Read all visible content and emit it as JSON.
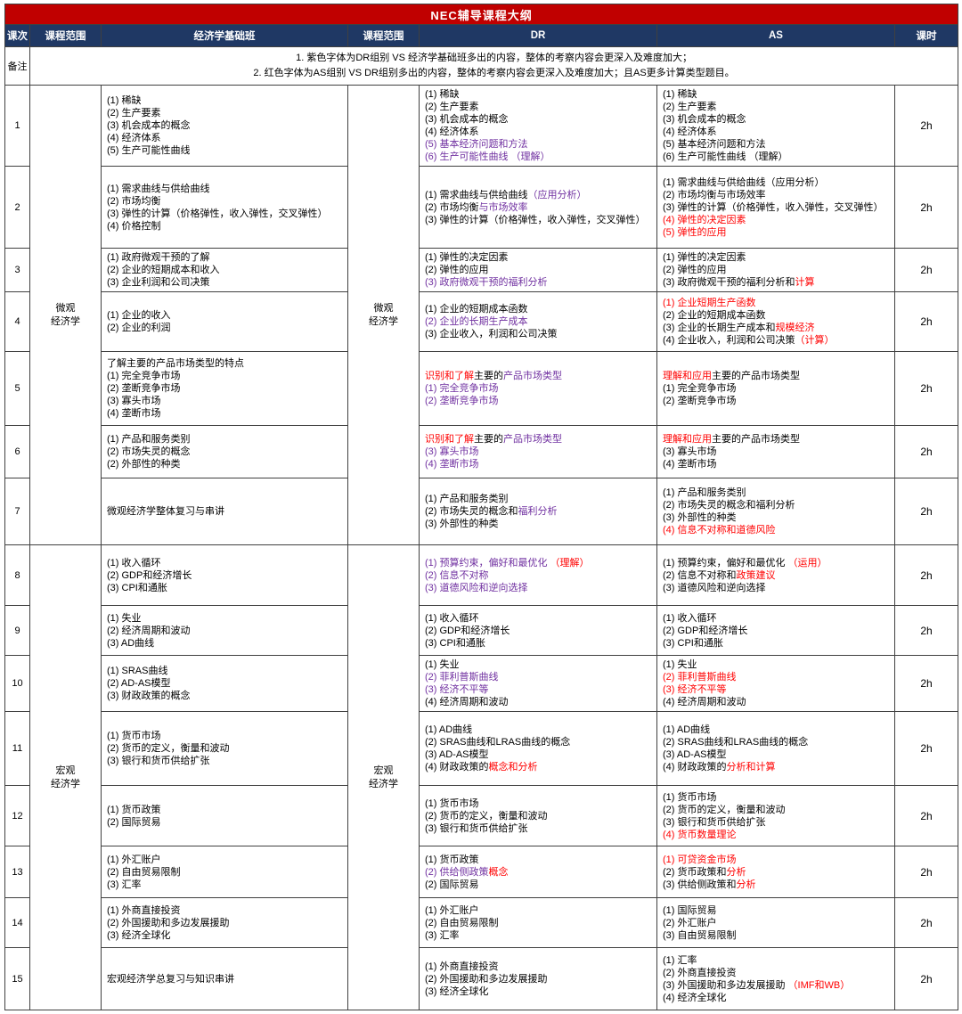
{
  "title": "NEC辅导课程大纲",
  "header": {
    "lesson": "课次",
    "scope1": "课程范围",
    "foundation": "经济学基础班",
    "scope2": "课程范围",
    "dr": "DR",
    "as": "AS",
    "hours": "课时"
  },
  "notes": {
    "label": "备注",
    "line1": "1. 紫色字体为DR组别 VS 经济学基础班多出的内容，整体的考察内容会更深入及难度加大；",
    "line2": "2. 红色字体为AS组别 VS DR组别多出的内容，整体的考察内容会更深入及难度加大；且AS更多计算类型题目。"
  },
  "scopes": {
    "micro": [
      "微观",
      "经济学"
    ],
    "macro": [
      "宏观",
      "经济学"
    ]
  },
  "colors": {
    "banner_bg": "#C00000",
    "banner_text": "#FFFFFF",
    "header_bg": "#1F3864",
    "header_text": "#FFFFFF",
    "purple": "#7030A0",
    "red": "#FF0000",
    "border": "#404040"
  },
  "rows": [
    {
      "lesson": "1",
      "hours": "2h",
      "foundation": [
        [
          [
            "(1) 稀缺",
            "k"
          ]
        ],
        [
          [
            "(2) 生产要素",
            "k"
          ]
        ],
        [
          [
            "(3) 机会成本的概念",
            "k"
          ]
        ],
        [
          [
            "(4) 经济体系",
            "k"
          ]
        ],
        [
          [
            "(5) 生产可能性曲线",
            "k"
          ]
        ]
      ],
      "dr": [
        [
          [
            "(1) 稀缺",
            "k"
          ]
        ],
        [
          [
            "(2) 生产要素",
            "k"
          ]
        ],
        [
          [
            "(3) 机会成本的概念",
            "k"
          ]
        ],
        [
          [
            "(4) 经济体系",
            "k"
          ]
        ],
        [
          [
            "(5) 基本经济问题和方法",
            "p"
          ]
        ],
        [
          [
            "(6) 生产可能性曲线 （理解）",
            "p"
          ]
        ]
      ],
      "as": [
        [
          [
            "(1) 稀缺",
            "k"
          ]
        ],
        [
          [
            "(2) 生产要素",
            "k"
          ]
        ],
        [
          [
            "(3) 机会成本的概念",
            "k"
          ]
        ],
        [
          [
            "(4) 经济体系",
            "k"
          ]
        ],
        [
          [
            "(5) 基本经济问题和方法",
            "k"
          ]
        ],
        [
          [
            "(6) 生产可能性曲线 （理解）",
            "k"
          ]
        ]
      ]
    },
    {
      "lesson": "2",
      "hours": "2h",
      "foundation": [
        [
          [
            "(1) 需求曲线与供给曲线",
            "k"
          ]
        ],
        [
          [
            "(2) 市场均衡",
            "k"
          ]
        ],
        [
          [
            "(3) 弹性的计算（价格弹性，收入弹性，交叉弹性）",
            "k"
          ]
        ],
        [
          [
            "(4) 价格控制",
            "k"
          ]
        ]
      ],
      "dr": [
        [
          [
            "(1) 需求曲线与供给曲线",
            "k"
          ],
          [
            "（应用分析）",
            "p"
          ]
        ],
        [
          [
            "(2) 市场均衡",
            "k"
          ],
          [
            "与市场效率",
            "p"
          ]
        ],
        [
          [
            "(3) 弹性的计算（价格弹性，收入弹性，交叉弹性）",
            "k"
          ]
        ]
      ],
      "as": [
        [
          [
            "(1) 需求曲线与供给曲线（应用分析）",
            "k"
          ]
        ],
        [
          [
            "(2) 市场均衡与市场效率",
            "k"
          ]
        ],
        [
          [
            "(3) 弹性的计算（价格弹性，收入弹性，交叉弹性）",
            "k"
          ]
        ],
        [
          [
            "(4) 弹性的决定因素",
            "r"
          ]
        ],
        [
          [
            "(5) 弹性的应用",
            "r"
          ]
        ]
      ]
    },
    {
      "lesson": "3",
      "hours": "2h",
      "foundation": [
        [
          [
            "(1) 政府微观干预的了解",
            "k"
          ]
        ],
        [
          [
            "(2) 企业的短期成本和收入",
            "k"
          ]
        ],
        [
          [
            "(3) 企业利润和公司决策",
            "k"
          ]
        ]
      ],
      "dr": [
        [
          [
            "(1) 弹性的决定因素",
            "k"
          ]
        ],
        [
          [
            "(2) 弹性的应用",
            "k"
          ]
        ],
        [
          [
            "(3) 政府微观干预的福利分析",
            "p"
          ]
        ]
      ],
      "as": [
        [
          [
            "(1) 弹性的决定因素",
            "k"
          ]
        ],
        [
          [
            "(2) 弹性的应用",
            "k"
          ]
        ],
        [
          [
            "(3) 政府微观干预的福利分析和",
            "k"
          ],
          [
            "计算",
            "r"
          ]
        ]
      ]
    },
    {
      "lesson": "4",
      "hours": "2h",
      "foundation": [
        [
          [
            "(1) 企业的收入",
            "k"
          ]
        ],
        [
          [
            "(2) 企业的利润",
            "k"
          ]
        ]
      ],
      "dr": [
        [
          [
            "(1) 企业的短期成本函数",
            "k"
          ]
        ],
        [
          [
            "(2) 企业的长期生产成本",
            "p"
          ]
        ],
        [
          [
            "(3) 企业收入，利润和公司决策",
            "k"
          ]
        ]
      ],
      "as": [
        [
          [
            "(1) 企业短期生产函数",
            "r"
          ]
        ],
        [
          [
            "(2) 企业的短期成本函数",
            "k"
          ]
        ],
        [
          [
            "(3) 企业的长期生产成本和",
            "k"
          ],
          [
            "规模经济",
            "r"
          ]
        ],
        [
          [
            "(4) 企业收入，利润和公司决策",
            "k"
          ],
          [
            "（计算）",
            "r"
          ]
        ]
      ]
    },
    {
      "lesson": "5",
      "hours": "2h",
      "foundation": [
        [
          [
            "了解主要的产品市场类型的特点",
            "k"
          ]
        ],
        [
          [
            "(1) 完全竞争市场",
            "k"
          ]
        ],
        [
          [
            "(2) 垄断竞争市场",
            "k"
          ]
        ],
        [
          [
            "(3) 寡头市场",
            "k"
          ]
        ],
        [
          [
            "(4) 垄断市场",
            "k"
          ]
        ]
      ],
      "dr": [
        [
          [
            "识别和了解",
            "r"
          ],
          [
            "主要的",
            "k"
          ],
          [
            "产品市场类型",
            "p"
          ]
        ],
        [
          [
            "(1) 完全竞争市场",
            "p"
          ]
        ],
        [
          [
            "(2) 垄断竞争市场",
            "p"
          ]
        ]
      ],
      "as": [
        [
          [
            "理解和应用",
            "r"
          ],
          [
            "主要的产品市场类型",
            "k"
          ]
        ],
        [
          [
            "(1) 完全竞争市场",
            "k"
          ]
        ],
        [
          [
            "(2) 垄断竞争市场",
            "k"
          ]
        ]
      ]
    },
    {
      "lesson": "6",
      "hours": "2h",
      "foundation": [
        [
          [
            "(1) 产品和服务类别",
            "k"
          ]
        ],
        [
          [
            "(2) 市场失灵的概念",
            "k"
          ]
        ],
        [
          [
            "(2) 外部性的种类",
            "k"
          ]
        ]
      ],
      "dr": [
        [
          [
            "识别和了解",
            "r"
          ],
          [
            "主要的",
            "k"
          ],
          [
            "产品市场类型",
            "p"
          ]
        ],
        [
          [
            "(3) 寡头市场",
            "p"
          ]
        ],
        [
          [
            "(4) 垄断市场",
            "p"
          ]
        ]
      ],
      "as": [
        [
          [
            "理解和应用",
            "r"
          ],
          [
            "主要的产品市场类型",
            "k"
          ]
        ],
        [
          [
            "(3) 寡头市场",
            "k"
          ]
        ],
        [
          [
            "(4) 垄断市场",
            "k"
          ]
        ]
      ]
    },
    {
      "lesson": "7",
      "hours": "2h",
      "foundation": [
        [
          [
            "微观经济学整体复习与串讲",
            "k"
          ]
        ]
      ],
      "dr": [
        [
          [
            "(1) 产品和服务类别",
            "k"
          ]
        ],
        [
          [
            "(2) 市场失灵的概念和",
            "k"
          ],
          [
            "福利分析",
            "p"
          ]
        ],
        [
          [
            "(3) 外部性的种类",
            "k"
          ]
        ]
      ],
      "as": [
        [
          [
            "(1) 产品和服务类别",
            "k"
          ]
        ],
        [
          [
            "(2) 市场失灵的概念和福利分析",
            "k"
          ]
        ],
        [
          [
            "(3) 外部性的种类",
            "k"
          ]
        ],
        [
          [
            "(4) 信息不对称和道德风险",
            "r"
          ]
        ]
      ]
    },
    {
      "lesson": "8",
      "hours": "2h",
      "foundation": [
        [
          [
            "(1) 收入循环",
            "k"
          ]
        ],
        [
          [
            "(2) GDP和经济增长",
            "k"
          ]
        ],
        [
          [
            "(3) CPI和通胀",
            "k"
          ]
        ]
      ],
      "dr": [
        [
          [
            "(1) 预算约束，偏好和最优化",
            "p"
          ],
          [
            " （理解）",
            "r"
          ]
        ],
        [
          [
            "(2) 信息不对称",
            "p"
          ]
        ],
        [
          [
            "(3) 道德风险和逆向选择",
            "p"
          ]
        ]
      ],
      "as": [
        [
          [
            "(1) 预算约束，偏好和最优化",
            "k"
          ],
          [
            " （运用）",
            "r"
          ]
        ],
        [
          [
            "(2) 信息不对称和",
            "k"
          ],
          [
            "政策建议",
            "r"
          ]
        ],
        [
          [
            "(3) 道德风险和逆向选择",
            "k"
          ]
        ]
      ]
    },
    {
      "lesson": "9",
      "hours": "2h",
      "foundation": [
        [
          [
            "(1) 失业",
            "k"
          ]
        ],
        [
          [
            "(2) 经济周期和波动",
            "k"
          ]
        ],
        [
          [
            "(3) AD曲线",
            "k"
          ]
        ]
      ],
      "dr": [
        [
          [
            "(1) 收入循环",
            "k"
          ]
        ],
        [
          [
            "(2) GDP和经济增长",
            "k"
          ]
        ],
        [
          [
            "(3) CPI和通胀",
            "k"
          ]
        ]
      ],
      "as": [
        [
          [
            "(1) 收入循环",
            "k"
          ]
        ],
        [
          [
            "(2) GDP和经济增长",
            "k"
          ]
        ],
        [
          [
            "(3) CPI和通胀",
            "k"
          ]
        ]
      ]
    },
    {
      "lesson": "10",
      "hours": "2h",
      "foundation": [
        [
          [
            "(1) SRAS曲线",
            "k"
          ]
        ],
        [
          [
            "(2) AD-AS模型",
            "k"
          ]
        ],
        [
          [
            "(3) 财政政策的概念",
            "k"
          ]
        ]
      ],
      "dr": [
        [
          [
            "(1) 失业",
            "k"
          ]
        ],
        [
          [
            "(2) 菲利普斯曲线",
            "p"
          ]
        ],
        [
          [
            "(3) 经济不平等",
            "p"
          ]
        ],
        [
          [
            "(4) 经济周期和波动",
            "k"
          ]
        ]
      ],
      "as": [
        [
          [
            "(1) 失业",
            "k"
          ]
        ],
        [
          [
            "(2) 菲利普斯曲线",
            "r"
          ]
        ],
        [
          [
            "(3) 经济不平等",
            "r"
          ]
        ],
        [
          [
            "(4) 经济周期和波动",
            "k"
          ]
        ]
      ]
    },
    {
      "lesson": "11",
      "hours": "2h",
      "foundation": [
        [
          [
            "(1) 货币市场",
            "k"
          ]
        ],
        [
          [
            "(2) 货币的定义，衡量和波动",
            "k"
          ]
        ],
        [
          [
            "(3) 银行和货币供给扩张",
            "k"
          ]
        ]
      ],
      "dr": [
        [
          [
            "(1) AD曲线",
            "k"
          ]
        ],
        [
          [
            "(2) SRAS曲线和LRAS曲线的概念",
            "k"
          ]
        ],
        [
          [
            "(3) AD-AS模型",
            "k"
          ]
        ],
        [
          [
            "(4) 财政政策的",
            "k"
          ],
          [
            "概念和分析",
            "r"
          ]
        ]
      ],
      "as": [
        [
          [
            "(1) AD曲线",
            "k"
          ]
        ],
        [
          [
            "(2) SRAS曲线和LRAS曲线的概念",
            "k"
          ]
        ],
        [
          [
            "(3) AD-AS模型",
            "k"
          ]
        ],
        [
          [
            "(4) 财政政策的",
            "k"
          ],
          [
            "分析和计算",
            "r"
          ]
        ]
      ]
    },
    {
      "lesson": "12",
      "hours": "2h",
      "foundation": [
        [
          [
            "(1) 货币政策",
            "k"
          ]
        ],
        [
          [
            "(2) 国际贸易",
            "k"
          ]
        ]
      ],
      "dr": [
        [
          [
            "(1) 货币市场",
            "k"
          ]
        ],
        [
          [
            "(2) 货币的定义，衡量和波动",
            "k"
          ]
        ],
        [
          [
            "(3) 银行和货币供给扩张",
            "k"
          ]
        ]
      ],
      "as": [
        [
          [
            "(1) 货币市场",
            "k"
          ]
        ],
        [
          [
            "(2) 货币的定义，衡量和波动",
            "k"
          ]
        ],
        [
          [
            "(3) 银行和货币供给扩张",
            "k"
          ]
        ],
        [
          [
            "(4) 货币数量理论",
            "r"
          ]
        ]
      ]
    },
    {
      "lesson": "13",
      "hours": "2h",
      "foundation": [
        [
          [
            "(1) 外汇账户",
            "k"
          ]
        ],
        [
          [
            "(2) 自由贸易限制",
            "k"
          ]
        ],
        [
          [
            "(3) 汇率",
            "k"
          ]
        ]
      ],
      "dr": [
        [
          [
            "(1) 货币政策",
            "k"
          ]
        ],
        [
          [
            "(2) 供给侧政策",
            "p"
          ],
          [
            "概念",
            "r"
          ]
        ],
        [
          [
            "(2) 国际贸易",
            "k"
          ]
        ]
      ],
      "as": [
        [
          [
            "(1) 可贷资金市场",
            "r"
          ]
        ],
        [
          [
            "(2) 货币政策和",
            "k"
          ],
          [
            "分析",
            "r"
          ]
        ],
        [
          [
            "(3) 供给侧政策和",
            "k"
          ],
          [
            "分析",
            "r"
          ]
        ]
      ]
    },
    {
      "lesson": "14",
      "hours": "2h",
      "foundation": [
        [
          [
            "(1) 外商直接投资",
            "k"
          ]
        ],
        [
          [
            "(2) 外国援助和多边发展援助",
            "k"
          ]
        ],
        [
          [
            "(3) 经济全球化",
            "k"
          ]
        ]
      ],
      "dr": [
        [
          [
            "(1) 外汇账户",
            "k"
          ]
        ],
        [
          [
            "(2) 自由贸易限制",
            "k"
          ]
        ],
        [
          [
            "(3) 汇率",
            "k"
          ]
        ]
      ],
      "as": [
        [
          [
            "(1) 国际贸易",
            "k"
          ]
        ],
        [
          [
            "(2) 外汇账户",
            "k"
          ]
        ],
        [
          [
            "(3) 自由贸易限制",
            "k"
          ]
        ]
      ]
    },
    {
      "lesson": "15",
      "hours": "2h",
      "foundation": [
        [
          [
            "宏观经济学总复习与知识串讲",
            "k"
          ]
        ]
      ],
      "dr": [
        [
          [
            "(1) 外商直接投资",
            "k"
          ]
        ],
        [
          [
            "(2) 外国援助和多边发展援助",
            "k"
          ]
        ],
        [
          [
            "(3) 经济全球化",
            "k"
          ]
        ]
      ],
      "as": [
        [
          [
            "(1) 汇率",
            "k"
          ]
        ],
        [
          [
            "(2) 外商直接投资",
            "k"
          ]
        ],
        [
          [
            "(3) 外国援助和多边发展援助",
            "k"
          ],
          [
            " （IMF和WB）",
            "r"
          ]
        ],
        [
          [
            "(4) 经济全球化",
            "k"
          ]
        ]
      ]
    }
  ]
}
